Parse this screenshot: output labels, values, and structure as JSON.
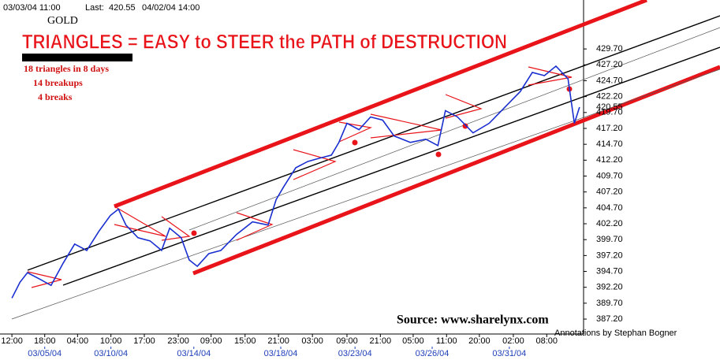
{
  "chart_data": {
    "type": "line",
    "header": {
      "start": "03/03/04   11:00",
      "last_label": "Last:",
      "last": 420.55,
      "end": "04/02/04   14:00"
    },
    "symbol": "GOLD",
    "title": "TRIANGLES =  EASY to STEER the PATH of DESTRUCTION",
    "notes": [
      "18 triangles in 8 days",
      "14 breakups",
      "4 breaks"
    ],
    "source": "Source: www.sharelynx.com",
    "credit": "Annotations by Stephan Bogner",
    "series": [
      {
        "color": "#1a2fd0",
        "x": [
          0.7,
          2.1,
          3.4,
          5.5,
          7.5,
          9.6,
          11.6,
          13.7,
          15.8,
          17.8,
          19.2,
          20.5,
          22.6,
          24.7,
          26.7,
          28.1,
          30.1,
          31.5,
          32.9,
          34.9,
          37.0,
          39.7,
          42.5,
          45.2,
          46.6,
          47.9,
          50.0,
          52.1,
          54.1,
          56.2,
          57.5,
          58.9,
          61.0,
          63.0,
          65.1,
          67.1,
          69.9,
          72.6,
          74.7,
          76.0,
          78.1,
          80.8,
          83.6,
          86.3,
          89.0,
          91.1,
          93.2,
          95.2,
          97.3,
          98.4,
          99.3
        ],
        "values": [
          390.5,
          393,
          394.5,
          393.5,
          392.5,
          396,
          399,
          398,
          401,
          403.5,
          404.5,
          402,
          400,
          399.5,
          398,
          401.5,
          400,
          396.5,
          395.5,
          397.5,
          398,
          400.5,
          402.5,
          402,
          406,
          408,
          411,
          412,
          412.5,
          413,
          415,
          418,
          417,
          419,
          418.5,
          416,
          415,
          415.5,
          414.5,
          420,
          419,
          416.5,
          418,
          420.5,
          423,
          426,
          425.5,
          427,
          425,
          418,
          420.55
        ]
      }
    ],
    "xlim": [
      0,
      100
    ],
    "ylim": [
      385.1,
      437.4
    ],
    "yticks": [
      {
        "value": 387.2,
        "label": "387.20"
      },
      {
        "value": 389.7,
        "label": "389.70"
      },
      {
        "value": 392.2,
        "label": "392.20"
      },
      {
        "value": 394.7,
        "label": "394.70"
      },
      {
        "value": 397.2,
        "label": "397.20"
      },
      {
        "value": 399.7,
        "label": "399.70"
      },
      {
        "value": 402.2,
        "label": "402.20"
      },
      {
        "value": 404.7,
        "label": "404.70"
      },
      {
        "value": 407.2,
        "label": "407.20"
      },
      {
        "value": 409.7,
        "label": "409.70"
      },
      {
        "value": 412.2,
        "label": "412.20"
      },
      {
        "value": 414.7,
        "label": "414.70"
      },
      {
        "value": 417.2,
        "label": "417.20"
      },
      {
        "value": 419.7,
        "label": "419.70"
      },
      {
        "value": 422.2,
        "label": "422.20"
      },
      {
        "value": 424.7,
        "label": "424.70"
      },
      {
        "value": 427.2,
        "label": "427.20"
      },
      {
        "value": 429.7,
        "label": "429.70"
      }
    ],
    "xticks": [
      {
        "value": 0.7,
        "label": "12:00"
      },
      {
        "value": 6.4,
        "label": "18:00"
      },
      {
        "value": 12.1,
        "label": "04:00"
      },
      {
        "value": 17.9,
        "label": "10:00"
      },
      {
        "value": 23.7,
        "label": "17:00"
      },
      {
        "value": 29.6,
        "label": "23:00"
      },
      {
        "value": 35.3,
        "label": "09:00"
      },
      {
        "value": 41.2,
        "label": "15:00"
      },
      {
        "value": 47.0,
        "label": "21:00"
      },
      {
        "value": 52.9,
        "label": "03:00"
      },
      {
        "value": 58.9,
        "label": "09:00"
      },
      {
        "value": 64.7,
        "label": "21:00"
      },
      {
        "value": 70.4,
        "label": "05:00"
      },
      {
        "value": 76.2,
        "label": "11:00"
      },
      {
        "value": 81.9,
        "label": "20:00"
      },
      {
        "value": 87.8,
        "label": "02:00"
      },
      {
        "value": 93.6,
        "label": "08:00"
      }
    ],
    "date_ticks": [
      {
        "value": 6.4,
        "label": "03/05/04"
      },
      {
        "value": 17.9,
        "label": "03/10/04"
      },
      {
        "value": 32.3,
        "label": "03/14/04"
      },
      {
        "value": 47.4,
        "label": "03/18/04"
      },
      {
        "value": 60.3,
        "label": "03/23/04"
      },
      {
        "value": 73.7,
        "label": "03/26/04"
      },
      {
        "value": 87.1,
        "label": "03/31/04"
      }
    ]
  }
}
